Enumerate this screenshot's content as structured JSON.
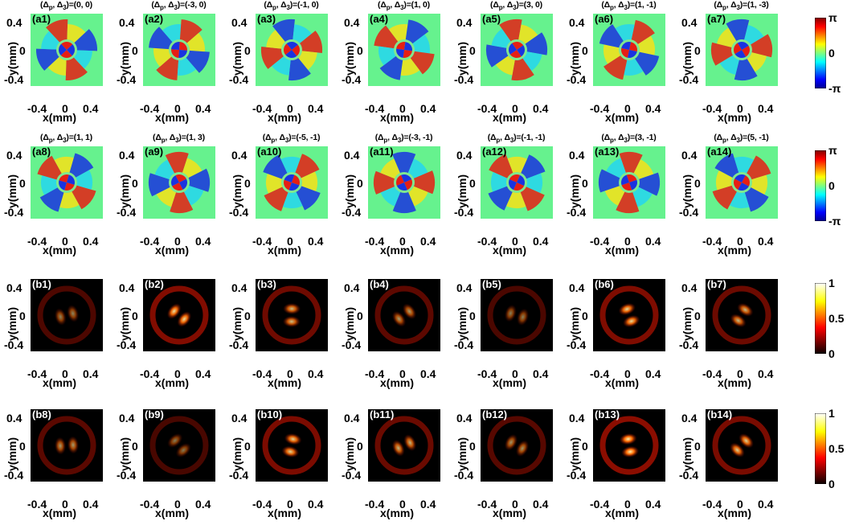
{
  "figure": {
    "axis": {
      "y_ticks": [
        "0.4",
        "0",
        "-0.4"
      ],
      "x_ticks": [
        "-0.4",
        "0",
        "0.4"
      ],
      "y_label": "y(mm)",
      "x_label": "x(mm)"
    },
    "rows": [
      {
        "kind": "phase",
        "panels": [
          {
            "label": "(a1)",
            "title": "(Δp, Δ3)=(0, 0)"
          },
          {
            "label": "(a2)",
            "title": "(Δp, Δ3)=(-3, 0)"
          },
          {
            "label": "(a3)",
            "title": "(Δp, Δ3)=(-1, 0)"
          },
          {
            "label": "(a4)",
            "title": "(Δp, Δ3)=(1, 0)"
          },
          {
            "label": "(a5)",
            "title": "(Δp, Δ3)=(3, 0)"
          },
          {
            "label": "(a6)",
            "title": "(Δp, Δ3)=(1, -1)"
          },
          {
            "label": "(a7)",
            "title": "(Δp, Δ3)=(1, -3)"
          }
        ],
        "colorbar": {
          "type": "jet",
          "ticks": [
            "π",
            "0",
            "-π"
          ]
        }
      },
      {
        "kind": "phase",
        "panels": [
          {
            "label": "(a8)",
            "title": "(Δp, Δ3)=(1, 1)"
          },
          {
            "label": "(a9)",
            "title": "(Δp, Δ3)=(1, 3)"
          },
          {
            "label": "(a10)",
            "title": "(Δp, Δ3)=(-5, -1)"
          },
          {
            "label": "(a11)",
            "title": "(Δp, Δ3)=(-3, -1)"
          },
          {
            "label": "(a12)",
            "title": "(Δp, Δ3)=(-1, -1)"
          },
          {
            "label": "(a13)",
            "title": "(Δp, Δ3)=(3, -1)"
          },
          {
            "label": "(a14)",
            "title": "(Δp, Δ3)=(5, -1)"
          }
        ],
        "colorbar": {
          "type": "jet",
          "ticks": [
            "π",
            "0",
            "-π"
          ]
        }
      },
      {
        "kind": "intensity",
        "panels": [
          {
            "label": "(b1)",
            "title": ""
          },
          {
            "label": "(b2)",
            "title": ""
          },
          {
            "label": "(b3)",
            "title": ""
          },
          {
            "label": "(b4)",
            "title": ""
          },
          {
            "label": "(b5)",
            "title": ""
          },
          {
            "label": "(b6)",
            "title": ""
          },
          {
            "label": "(b7)",
            "title": ""
          }
        ],
        "colorbar": {
          "type": "hot",
          "ticks": [
            "1",
            "0.5",
            "0"
          ]
        }
      },
      {
        "kind": "intensity",
        "panels": [
          {
            "label": "(b8)",
            "title": ""
          },
          {
            "label": "(b9)",
            "title": ""
          },
          {
            "label": "(b10)",
            "title": ""
          },
          {
            "label": "(b11)",
            "title": ""
          },
          {
            "label": "(b12)",
            "title": ""
          },
          {
            "label": "(b13)",
            "title": ""
          },
          {
            "label": "(b14)",
            "title": ""
          }
        ],
        "colorbar": {
          "type": "hot",
          "ticks": [
            "1",
            "0.5",
            "0"
          ]
        }
      }
    ]
  }
}
